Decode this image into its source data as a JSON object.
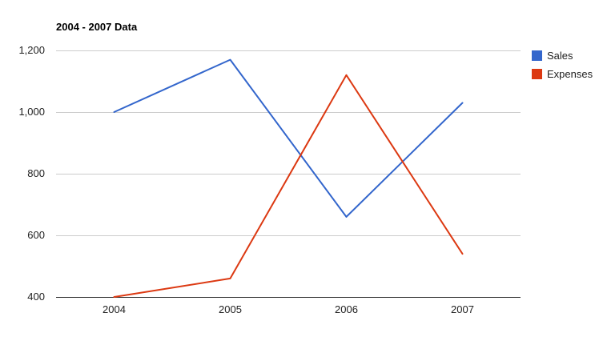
{
  "chart_data": {
    "type": "line",
    "title": "2004 - 2007 Data",
    "categories": [
      "2004",
      "2005",
      "2006",
      "2007"
    ],
    "series": [
      {
        "name": "Sales",
        "color": "#3366cc",
        "values": [
          1000,
          1170,
          660,
          1030
        ]
      },
      {
        "name": "Expenses",
        "color": "#dc3912",
        "values": [
          400,
          460,
          1120,
          540
        ]
      }
    ],
    "ylim": [
      400,
      1200
    ],
    "yticks": [
      400,
      600,
      800,
      1000,
      1200
    ],
    "ytick_labels": [
      "400",
      "600",
      "800",
      "1,000",
      "1,200"
    ],
    "grid": true,
    "legend_position": "right"
  }
}
